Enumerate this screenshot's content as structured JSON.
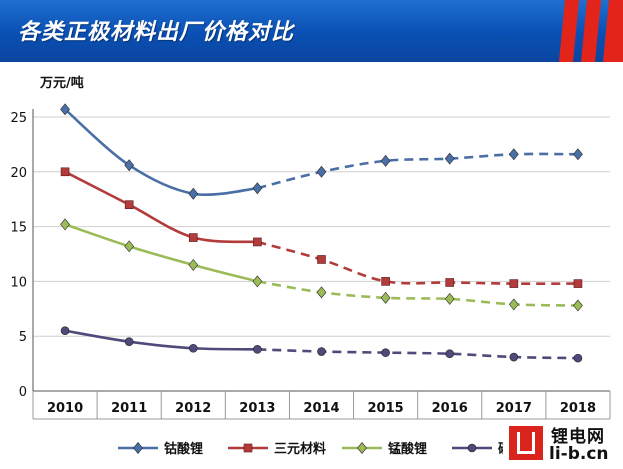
{
  "banner": {
    "title": "各类正极材料出厂价格对比",
    "accent_color": "#0b4fb0",
    "stripe_color": "#e3241b"
  },
  "logo": {
    "cn_text": "锂电网",
    "en_text": "li-b.cn",
    "color": "#d9251d"
  },
  "chart_data": {
    "type": "line",
    "title": "各类正极材料出厂价格对比",
    "ylabel": "万元/吨",
    "xlabel": "",
    "x": [
      "2010",
      "2011",
      "2012",
      "2013",
      "2014",
      "2015",
      "2016",
      "2017",
      "2018"
    ],
    "ylim": [
      0,
      25
    ],
    "yticks": [
      0,
      5,
      10,
      15,
      20,
      25
    ],
    "grid": true,
    "legend_position": "bottom",
    "series": [
      {
        "name": "钴酸锂",
        "color": "#4a6fa5",
        "marker": "diamond",
        "values": [
          25.7,
          20.6,
          18.0,
          18.5,
          20.0,
          21.0,
          21.2,
          21.6,
          21.6
        ],
        "solid_until_index": 3
      },
      {
        "name": "三元材料",
        "color": "#b23b3b",
        "marker": "square",
        "values": [
          20.0,
          17.0,
          14.0,
          13.6,
          12.0,
          10.0,
          9.9,
          9.8,
          9.8
        ],
        "solid_until_index": 3
      },
      {
        "name": "锰酸锂",
        "color": "#9bbb59",
        "marker": "diamond",
        "values": [
          15.2,
          13.2,
          11.5,
          10.0,
          9.0,
          8.5,
          8.4,
          7.9,
          7.8
        ],
        "solid_until_index": 3
      },
      {
        "name": "磷酸铁锂",
        "color": "#4e4a7a",
        "marker": "circle",
        "values": [
          5.5,
          4.5,
          3.9,
          3.8,
          3.6,
          3.5,
          3.4,
          3.1,
          3.0
        ],
        "solid_until_index": 3
      }
    ]
  }
}
